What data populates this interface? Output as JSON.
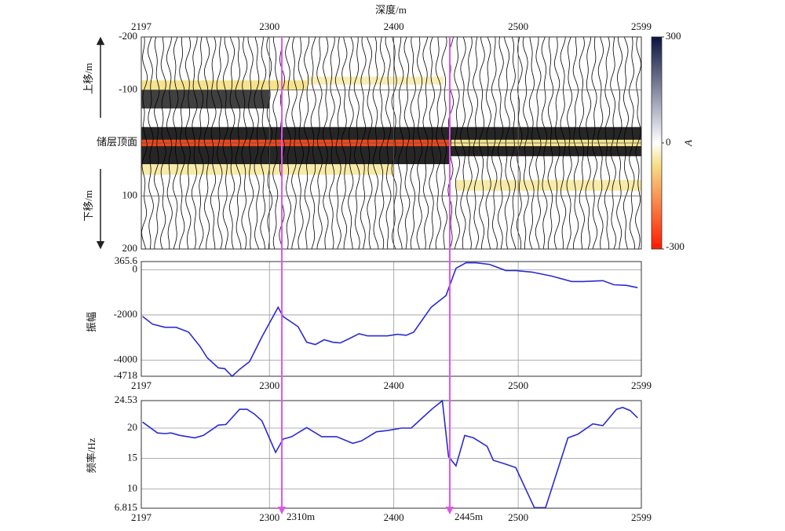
{
  "chart_data": [
    {
      "type": "seismic",
      "xlabel": "深度/m",
      "xlim": [
        2197,
        2599
      ],
      "xticks": [
        2197,
        2300,
        2400,
        2500,
        2599
      ],
      "xticks_position": "top",
      "ylim": [
        -200,
        200
      ],
      "y_inverted": true,
      "yticks": [
        -200,
        -100,
        {
          "value": 0,
          "label": "储层顶面"
        },
        100,
        200
      ],
      "ylabel_top": "上移/m",
      "ylabel_bottom": "下移/m",
      "grid": true,
      "colorbar": {
        "lim": [
          -300,
          300
        ],
        "ticks": [
          300,
          0,
          -300
        ],
        "label": "A",
        "colors": [
          "#0a1440",
          "#ffffff",
          "#f5e08a",
          "#ff1a00"
        ]
      }
    },
    {
      "type": "line",
      "ylabel": "振幅",
      "xlim": [
        2197,
        2599
      ],
      "xticks": [
        2197,
        2300,
        2400,
        2500,
        2599
      ],
      "ylim": [
        -4718,
        365.6
      ],
      "yticks": [
        365.6,
        0,
        -2000,
        -4000,
        -4718
      ],
      "grid": true,
      "color": "#2b2bd0",
      "x": [
        2198,
        2206,
        2216,
        2225,
        2235,
        2244,
        2250,
        2259,
        2264,
        2270,
        2276,
        2284,
        2294,
        2307,
        2311,
        2323,
        2330,
        2337,
        2344,
        2351,
        2357,
        2365,
        2372,
        2379,
        2395,
        2403,
        2410,
        2416,
        2430,
        2442,
        2450,
        2458,
        2466,
        2477,
        2490,
        2498,
        2511,
        2527,
        2543,
        2552,
        2568,
        2577,
        2587,
        2596
      ],
      "values": [
        -2060,
        -2410,
        -2550,
        -2550,
        -2760,
        -3380,
        -3900,
        -4345,
        -4380,
        -4718,
        -4410,
        -4070,
        -2970,
        -1660,
        -2070,
        -2520,
        -3210,
        -3310,
        -3100,
        -3210,
        -3240,
        -3030,
        -2830,
        -2930,
        -2930,
        -2860,
        -2900,
        -2760,
        -1660,
        -1140,
        70,
        310,
        310,
        240,
        -30,
        -30,
        -100,
        -280,
        -520,
        -520,
        -480,
        -660,
        -690,
        -790
      ]
    },
    {
      "type": "line",
      "ylabel": "频率/Hz",
      "xlim": [
        2197,
        2599
      ],
      "xticks": [
        2197,
        2300,
        2400,
        2500,
        2599
      ],
      "ylim": [
        6.815,
        24.53
      ],
      "yticks": [
        24.53,
        20,
        15,
        10,
        6.815
      ],
      "grid": true,
      "color": "#2b2bd0",
      "x": [
        2198,
        2210,
        2216,
        2221,
        2228,
        2240,
        2247,
        2259,
        2265,
        2276,
        2282,
        2288,
        2294,
        2305,
        2311,
        2318,
        2330,
        2342,
        2354,
        2367,
        2374,
        2386,
        2395,
        2406,
        2414,
        2423,
        2431,
        2439,
        2444,
        2450,
        2457,
        2464,
        2475,
        2480,
        2488,
        2498,
        2513,
        2522,
        2540,
        2548,
        2560,
        2568,
        2579,
        2584,
        2590,
        2596
      ],
      "values": [
        21.0,
        19.2,
        19.1,
        19.2,
        18.8,
        18.4,
        18.8,
        20.5,
        20.6,
        23.1,
        23.1,
        22.3,
        21.2,
        16.0,
        18.2,
        18.6,
        20.1,
        18.6,
        18.6,
        17.5,
        17.9,
        19.4,
        19.6,
        20.0,
        20.0,
        21.7,
        23.2,
        24.5,
        15.3,
        13.8,
        18.8,
        18.4,
        17.0,
        14.7,
        14.2,
        13.5,
        6.9,
        6.9,
        18.4,
        19.0,
        20.7,
        20.4,
        23.1,
        23.4,
        22.9,
        21.7
      ],
      "markers": {
        "color": "#dd55ee",
        "label_color": "#e00000",
        "items": [
          {
            "value": 2310,
            "label": "2310m"
          },
          {
            "value": 2445,
            "label": "2445m"
          }
        ]
      }
    }
  ]
}
